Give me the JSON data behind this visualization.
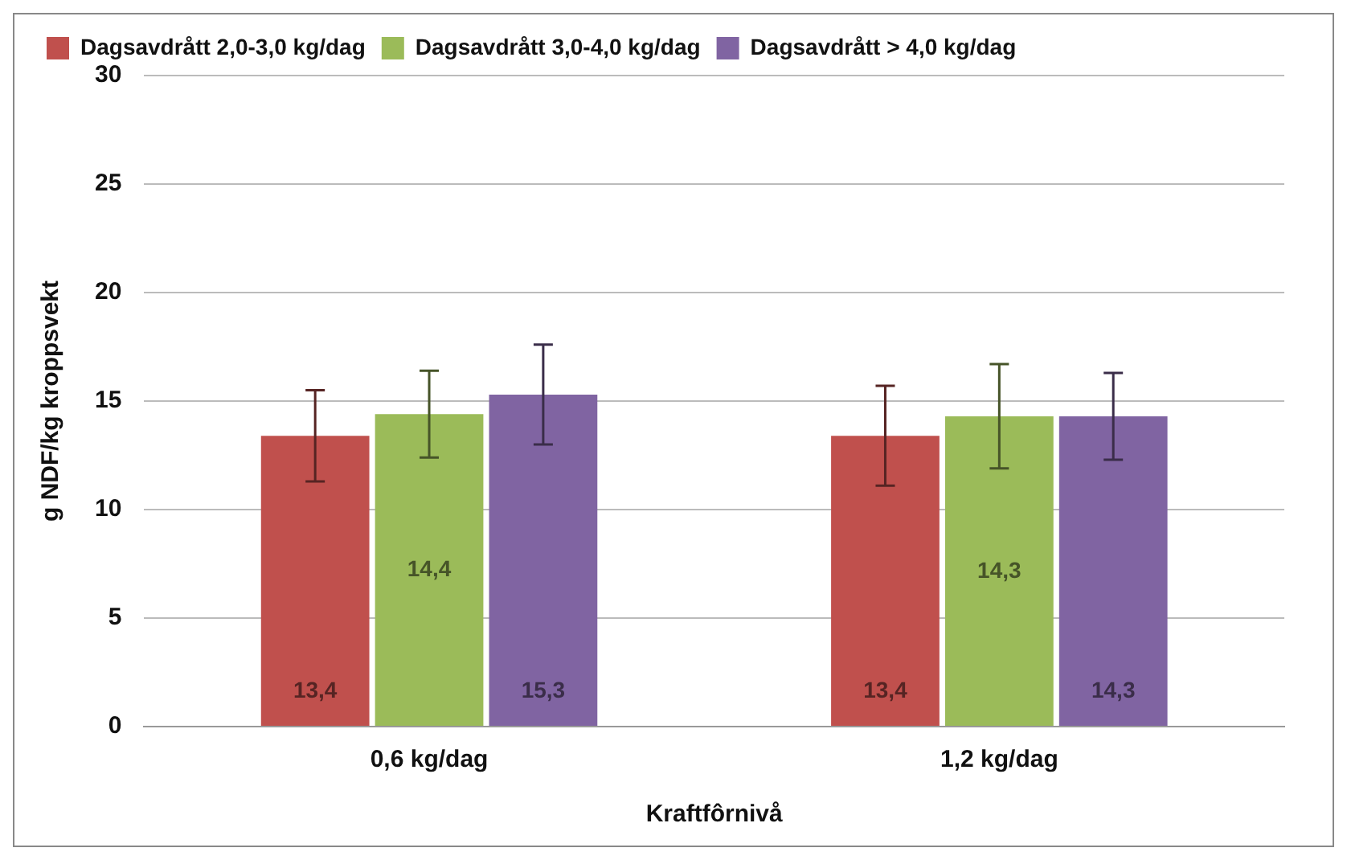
{
  "chart_data": {
    "type": "bar",
    "xlabel": "Kraftfôrnivå",
    "ylabel": "g NDF/kg kroppsvekt",
    "categories": [
      "0,6 kg/dag",
      "1,2 kg/dag"
    ],
    "series": [
      {
        "name": "Dagsavdrått 2,0-3,0 kg/dag",
        "color": "#c0504d",
        "values": [
          13.4,
          13.4
        ],
        "errors": [
          2.1,
          2.3
        ],
        "value_labels": [
          "13,4",
          "13,4"
        ]
      },
      {
        "name": "Dagsavdrått 3,0-4,0 kg/dag",
        "color": "#9bbb59",
        "values": [
          14.4,
          14.3
        ],
        "errors": [
          2.0,
          2.4
        ],
        "value_labels": [
          "14,4",
          "14,3"
        ]
      },
      {
        "name": "Dagsavdrått > 4,0 kg/dag",
        "color": "#8064a2",
        "values": [
          15.3,
          14.3
        ],
        "errors": [
          2.3,
          2.0
        ],
        "value_labels": [
          "15,3",
          "14,3"
        ]
      }
    ],
    "ylim": [
      0,
      30
    ],
    "yticks": [
      0,
      5,
      10,
      15,
      20,
      25,
      30
    ],
    "grid": "y",
    "legend": "top"
  }
}
